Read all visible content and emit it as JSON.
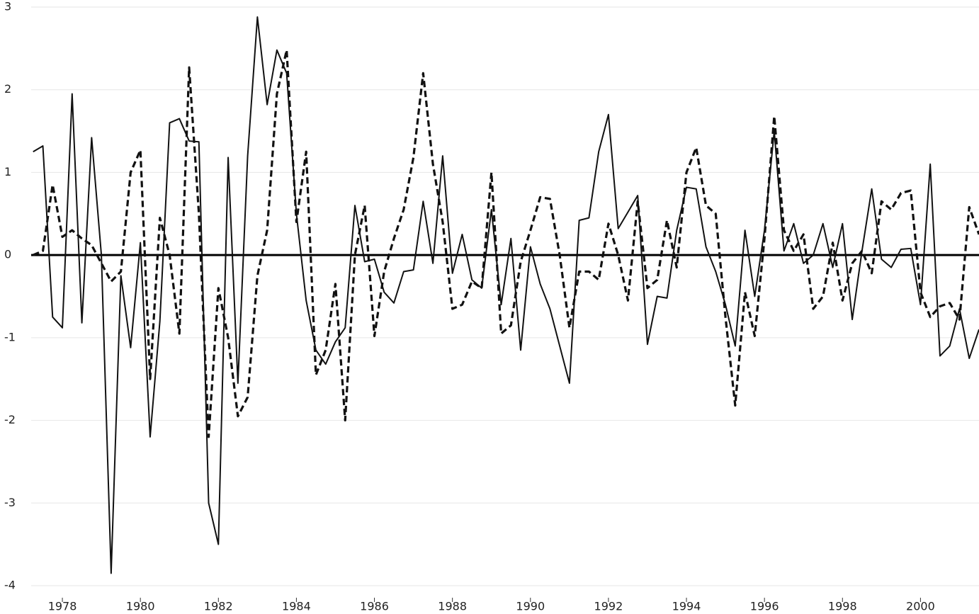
{
  "chart_data": {
    "type": "line",
    "x": [
      1977.25,
      1977.5,
      1977.75,
      1978,
      1978.25,
      1978.5,
      1978.75,
      1979,
      1979.25,
      1979.5,
      1979.75,
      1980,
      1980.25,
      1980.5,
      1980.75,
      1981,
      1981.25,
      1981.5,
      1981.75,
      1982,
      1982.25,
      1982.5,
      1982.75,
      1983,
      1983.25,
      1983.5,
      1983.75,
      1984,
      1984.25,
      1984.5,
      1984.75,
      1985,
      1985.25,
      1985.5,
      1985.75,
      1986,
      1986.25,
      1986.5,
      1986.75,
      1987,
      1987.25,
      1987.5,
      1987.75,
      1988,
      1988.25,
      1988.5,
      1988.75,
      1989,
      1989.25,
      1989.5,
      1989.75,
      1990,
      1990.25,
      1990.5,
      1990.75,
      1991,
      1991.25,
      1991.5,
      1991.75,
      1992,
      1992.25,
      1992.5,
      1992.75,
      1993,
      1993.25,
      1993.5,
      1993.75,
      1994,
      1994.25,
      1994.5,
      1994.75,
      1995,
      1995.25,
      1995.5,
      1995.75,
      1996,
      1996.25,
      1996.5,
      1996.75,
      1997,
      1997.25,
      1997.5,
      1997.75,
      1998,
      1998.25,
      1998.5,
      1998.75,
      1999,
      1999.25,
      1999.5,
      1999.75,
      2000,
      2000.25,
      2000.5,
      2000.75,
      2001,
      2001.25,
      2001.5
    ],
    "series": [
      {
        "color": "#111111",
        "linestyle": "solid",
        "values": [
          1.25,
          1.32,
          -0.75,
          -0.88,
          1.95,
          -0.82,
          1.42,
          0.0,
          -3.85,
          -0.25,
          -1.12,
          0.15,
          -2.2,
          -0.8,
          1.6,
          1.65,
          1.38,
          1.37,
          -3.0,
          -3.5,
          1.18,
          -1.55,
          1.2,
          2.88,
          1.82,
          2.48,
          2.2,
          0.5,
          -0.55,
          -1.15,
          -1.32,
          -1.05,
          -0.88,
          0.6,
          -0.08,
          -0.05,
          -0.45,
          -0.58,
          -0.2,
          -0.18,
          0.65,
          -0.1,
          1.2,
          -0.22,
          0.25,
          -0.3,
          -0.4,
          0.55,
          -0.6,
          0.2,
          -1.15,
          0.1,
          -0.35,
          -0.65,
          -1.1,
          -1.55,
          0.42,
          0.45,
          1.25,
          1.7,
          0.32,
          0.52,
          0.72,
          -1.08,
          -0.5,
          -0.52,
          0.3,
          0.82,
          0.8,
          0.1,
          -0.2,
          -0.6,
          -1.1,
          0.3,
          -0.5,
          0.3,
          1.5,
          0.05,
          0.38,
          -0.1,
          0.0,
          0.38,
          -0.15,
          0.38,
          -0.78,
          0.05,
          0.8,
          -0.05,
          -0.15,
          0.07,
          0.08,
          -0.6,
          1.1,
          -1.22,
          -1.1,
          -0.65,
          -1.25,
          -0.9
        ]
      },
      {
        "color": "#111111",
        "linestyle": "dashed",
        "values": [
          0.0,
          0.05,
          0.85,
          0.22,
          0.3,
          0.2,
          0.12,
          -0.1,
          -0.32,
          -0.2,
          1.0,
          1.27,
          -1.5,
          0.45,
          0.0,
          -0.95,
          2.27,
          0.5,
          -2.2,
          -0.4,
          -1.0,
          -1.95,
          -1.72,
          -0.25,
          0.3,
          1.95,
          2.48,
          0.4,
          1.25,
          -1.45,
          -1.15,
          -0.35,
          -2.0,
          0.0,
          0.6,
          -0.98,
          -0.2,
          0.2,
          0.55,
          1.18,
          2.2,
          1.1,
          0.4,
          -0.65,
          -0.6,
          -0.32,
          -0.4,
          1.0,
          -0.95,
          -0.85,
          -0.08,
          0.3,
          0.7,
          0.68,
          0.0,
          -0.88,
          -0.2,
          -0.2,
          -0.3,
          0.38,
          0.0,
          -0.55,
          0.65,
          -0.4,
          -0.3,
          0.42,
          -0.15,
          1.0,
          1.3,
          0.6,
          0.5,
          -0.75,
          -1.82,
          -0.45,
          -0.98,
          0.2,
          1.68,
          0.3,
          0.05,
          0.25,
          -0.65,
          -0.5,
          0.15,
          -0.55,
          -0.1,
          0.05,
          -0.22,
          0.65,
          0.55,
          0.75,
          0.78,
          -0.45,
          -0.75,
          -0.62,
          -0.58,
          -0.78,
          0.58,
          0.25
        ]
      }
    ],
    "xlim": [
      1977.2,
      2001.5
    ],
    "xticks": [
      1978,
      1980,
      1982,
      1984,
      1986,
      1988,
      1990,
      1992,
      1994,
      1996,
      1998,
      2000
    ],
    "ylim": [
      -4,
      3
    ],
    "yticks": [
      -4,
      -3,
      -2,
      -1,
      0,
      1,
      2,
      3
    ],
    "grid": true
  }
}
